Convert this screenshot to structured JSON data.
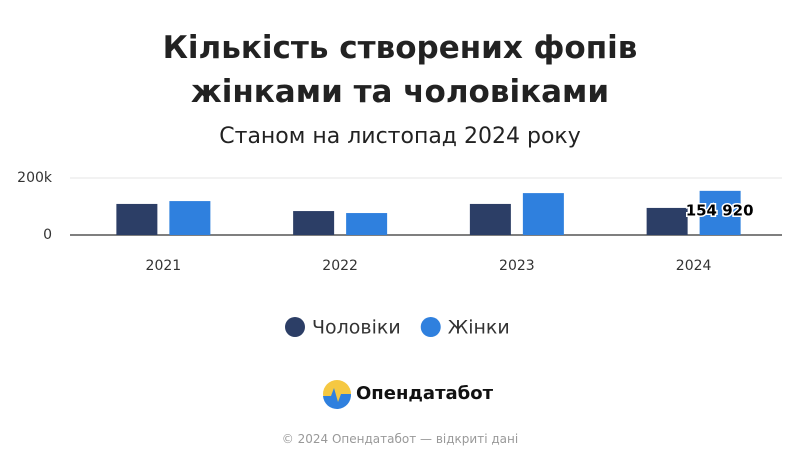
{
  "chart_data": {
    "type": "bar",
    "title": "Кількість створених фопів жінками та чоловіками",
    "subtitle": "Станом на листопад 2024 року",
    "categories": [
      "2021",
      "2022",
      "2023",
      "2024"
    ],
    "series": [
      {
        "name": "Чоловіки",
        "color": "#2c3e66",
        "values": [
          109000,
          84000,
          109000,
          95000
        ]
      },
      {
        "name": "Жінки",
        "color": "#2f80de",
        "values": [
          119000,
          77000,
          147000,
          154920
        ],
        "value_labels": [
          null,
          null,
          null,
          "154 920"
        ]
      }
    ],
    "ylim": [
      0,
      200000
    ],
    "yticks": [
      0,
      {
        "value": 200000,
        "label": "200k"
      }
    ],
    "grid": true,
    "legend": "bottom",
    "logo": "Опендатабот",
    "footer": "© 2024 Опендатабот — відкриті дані"
  }
}
